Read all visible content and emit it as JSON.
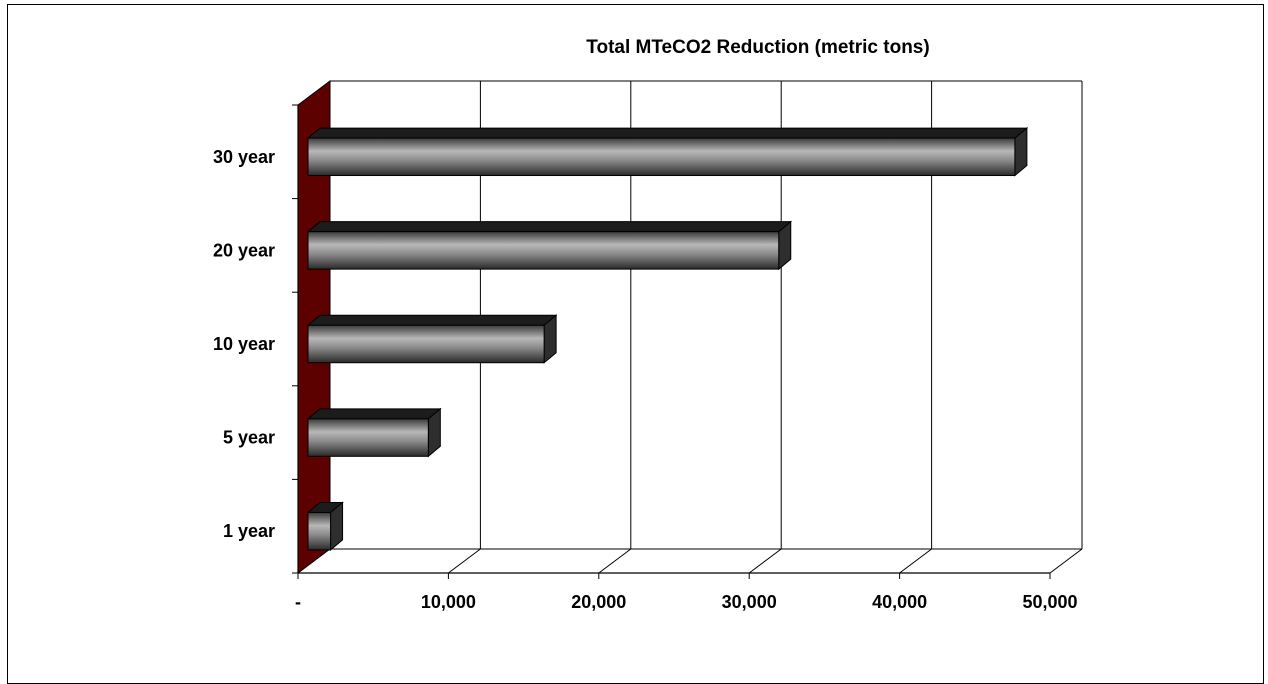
{
  "chart_data": {
    "type": "bar",
    "orientation": "horizontal",
    "style": "3d",
    "title": "Total MTeCO2 Reduction (metric tons)",
    "categories": [
      "1 year",
      "5 year",
      "10 year",
      "20 year",
      "30 year"
    ],
    "values": [
      1500,
      8000,
      15700,
      31300,
      47000
    ],
    "xlim": [
      0,
      50000
    ],
    "x_ticks": [
      0,
      10000,
      20000,
      30000,
      40000,
      50000
    ],
    "x_tick_labels": [
      "-",
      "10,000",
      "20,000",
      "30,000",
      "40,000",
      "50,000"
    ],
    "grid": "vertical",
    "legend": "none",
    "colors": {
      "bar_face": "#5a5a5a",
      "bar_highlight": "#b8b8b8",
      "bar_top": "#1c1c1c",
      "bar_side": "#2e2e2e",
      "wall": "#5c0000"
    }
  }
}
